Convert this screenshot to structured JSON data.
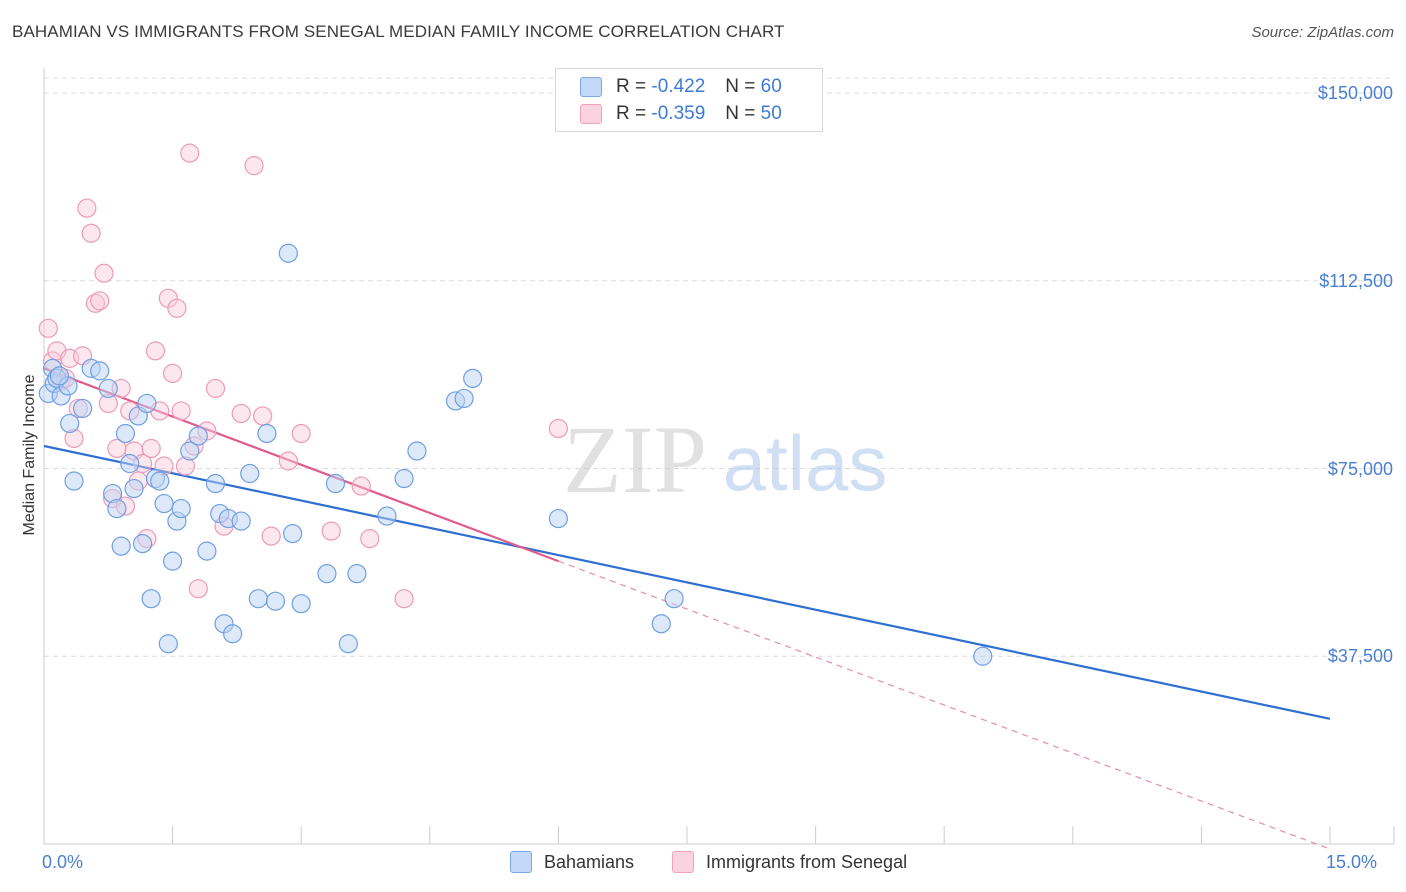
{
  "title": "BAHAMIAN VS IMMIGRANTS FROM SENEGAL MEDIAN FAMILY INCOME CORRELATION CHART",
  "source": "Source: ZipAtlas.com",
  "watermark": {
    "zip": "ZIP",
    "atlas": "atlas"
  },
  "colors": {
    "blue": "#7aa8e8",
    "blue_line": "#2f6fd0",
    "pink": "#f1a2bd",
    "pink_line": "#e05a8c",
    "tick_text": "#4a7fd0"
  },
  "legend": {
    "rows": [
      {
        "r_label": "R =",
        "r_value": "-0.422",
        "n_label": "N =",
        "n_value": "60"
      },
      {
        "r_label": "R =",
        "r_value": "-0.359",
        "n_label": "N =",
        "n_value": "50"
      }
    ]
  },
  "bottom_legend": [
    "Bahamians",
    "Immigrants from Senegal"
  ],
  "chart_data": {
    "type": "scatter",
    "xlabel": "",
    "ylabel": "Median Family Income",
    "xlim": [
      0,
      15
    ],
    "ylim": [
      0,
      155000
    ],
    "x_tick_labels": [
      "0.0%",
      "15.0%"
    ],
    "y_ticks": [
      37500,
      75000,
      112500,
      150000
    ],
    "y_tick_labels": [
      "$37,500",
      "$75,000",
      "$112,500",
      "$150,000"
    ],
    "grid": true,
    "series": [
      {
        "name": "Bahamians",
        "color": "#7aa8e8",
        "trend": {
          "x": [
            0,
            15
          ],
          "y": [
            79500,
            25000
          ],
          "dashed_extension": false
        },
        "points": [
          [
            0.05,
            90000
          ],
          [
            0.1,
            95000
          ],
          [
            0.12,
            92000
          ],
          [
            0.15,
            93000
          ],
          [
            0.2,
            89500
          ],
          [
            0.28,
            91500
          ],
          [
            0.3,
            84000
          ],
          [
            0.35,
            72500
          ],
          [
            0.45,
            87000
          ],
          [
            0.55,
            95000
          ],
          [
            0.65,
            94500
          ],
          [
            0.75,
            91000
          ],
          [
            0.8,
            70000
          ],
          [
            0.85,
            67000
          ],
          [
            0.9,
            59500
          ],
          [
            0.95,
            82000
          ],
          [
            1.0,
            76000
          ],
          [
            1.05,
            71000
          ],
          [
            1.1,
            85500
          ],
          [
            1.15,
            60000
          ],
          [
            1.2,
            88000
          ],
          [
            1.25,
            49000
          ],
          [
            1.3,
            73000
          ],
          [
            1.35,
            72500
          ],
          [
            1.4,
            68000
          ],
          [
            1.45,
            40000
          ],
          [
            1.5,
            56500
          ],
          [
            1.55,
            64500
          ],
          [
            1.6,
            67000
          ],
          [
            1.7,
            78500
          ],
          [
            1.8,
            81500
          ],
          [
            1.9,
            58500
          ],
          [
            2.0,
            72000
          ],
          [
            2.05,
            66000
          ],
          [
            2.1,
            44000
          ],
          [
            2.15,
            65000
          ],
          [
            2.2,
            42000
          ],
          [
            2.3,
            64500
          ],
          [
            2.4,
            74000
          ],
          [
            2.5,
            49000
          ],
          [
            2.6,
            82000
          ],
          [
            2.7,
            48500
          ],
          [
            2.85,
            118000
          ],
          [
            2.9,
            62000
          ],
          [
            3.0,
            48000
          ],
          [
            3.3,
            54000
          ],
          [
            3.4,
            72000
          ],
          [
            3.55,
            40000
          ],
          [
            3.65,
            54000
          ],
          [
            4.0,
            65500
          ],
          [
            4.2,
            73000
          ],
          [
            4.35,
            78500
          ],
          [
            4.8,
            88500
          ],
          [
            4.9,
            89000
          ],
          [
            5.0,
            93000
          ],
          [
            6.0,
            65000
          ],
          [
            7.2,
            44000
          ],
          [
            7.35,
            49000
          ],
          [
            10.95,
            37500
          ],
          [
            0.18,
            93500
          ]
        ]
      },
      {
        "name": "Immigrants from Senegal",
        "color": "#f1a2bd",
        "trend": {
          "x": [
            0,
            6
          ],
          "y": [
            95000,
            56500
          ],
          "dashed_extension": true,
          "dashed_to": [
            15,
            -1000
          ]
        },
        "points": [
          [
            0.05,
            103000
          ],
          [
            0.1,
            96500
          ],
          [
            0.15,
            98500
          ],
          [
            0.2,
            92500
          ],
          [
            0.25,
            93000
          ],
          [
            0.3,
            97000
          ],
          [
            0.35,
            81000
          ],
          [
            0.4,
            87000
          ],
          [
            0.45,
            97500
          ],
          [
            0.5,
            127000
          ],
          [
            0.55,
            122000
          ],
          [
            0.6,
            108000
          ],
          [
            0.65,
            108500
          ],
          [
            0.7,
            114000
          ],
          [
            0.75,
            88000
          ],
          [
            0.8,
            69000
          ],
          [
            0.85,
            79000
          ],
          [
            0.9,
            91000
          ],
          [
            0.95,
            67500
          ],
          [
            1.0,
            86500
          ],
          [
            1.05,
            78500
          ],
          [
            1.1,
            72500
          ],
          [
            1.15,
            76000
          ],
          [
            1.2,
            61000
          ],
          [
            1.25,
            79000
          ],
          [
            1.3,
            98500
          ],
          [
            1.35,
            86500
          ],
          [
            1.4,
            75500
          ],
          [
            1.45,
            109000
          ],
          [
            1.5,
            94000
          ],
          [
            1.55,
            107000
          ],
          [
            1.6,
            86500
          ],
          [
            1.65,
            75500
          ],
          [
            1.7,
            138000
          ],
          [
            1.75,
            79500
          ],
          [
            1.8,
            51000
          ],
          [
            1.9,
            82500
          ],
          [
            2.0,
            91000
          ],
          [
            2.1,
            63500
          ],
          [
            2.3,
            86000
          ],
          [
            2.45,
            135500
          ],
          [
            2.55,
            85500
          ],
          [
            2.65,
            61500
          ],
          [
            2.85,
            76500
          ],
          [
            3.0,
            82000
          ],
          [
            3.35,
            62500
          ],
          [
            3.7,
            71500
          ],
          [
            3.8,
            61000
          ],
          [
            4.2,
            49000
          ],
          [
            6.0,
            83000
          ]
        ]
      }
    ]
  }
}
